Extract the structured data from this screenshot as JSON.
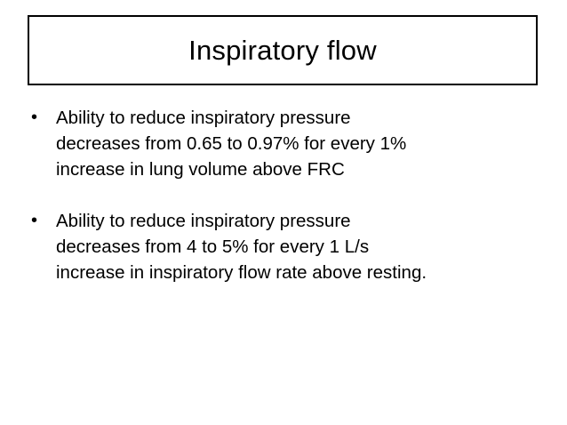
{
  "slide": {
    "title": "Inspiratory flow",
    "bullets": [
      {
        "mark": "•",
        "lines": [
          "Ability to reduce inspiratory pressure",
          "decreases from 0.65 to 0.97% for every 1%",
          "increase in lung volume above FRC"
        ]
      },
      {
        "mark": "•",
        "lines": [
          "Ability to reduce inspiratory pressure",
          "decreases from 4 to 5% for every 1 L/s",
          "increase in inspiratory flow rate above resting."
        ]
      }
    ]
  }
}
